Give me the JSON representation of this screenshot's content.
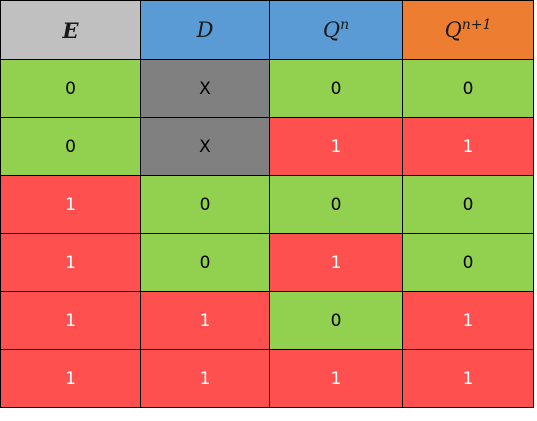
{
  "header": {
    "e": "E",
    "d": "D",
    "q_base": "Q",
    "q_sup": "n",
    "qn1_base": "Q",
    "qn1_sup": "n+1"
  },
  "rows": [
    [
      "0",
      "X",
      "0",
      "0"
    ],
    [
      "0",
      "X",
      "1",
      "1"
    ],
    [
      "1",
      "0",
      "0",
      "0"
    ],
    [
      "1",
      "0",
      "1",
      "0"
    ],
    [
      "1",
      "1",
      "0",
      "1"
    ],
    [
      "1",
      "1",
      "1",
      "1"
    ]
  ],
  "colors": {
    "zero_cell": "#92d050",
    "one_cell": "#ff5050",
    "dont_care_cell": "#808080",
    "header_e": "#c0c0c0",
    "header_d": "#5b9bd5",
    "header_qn": "#5b9bd5",
    "header_qn1": "#ed7d31"
  }
}
